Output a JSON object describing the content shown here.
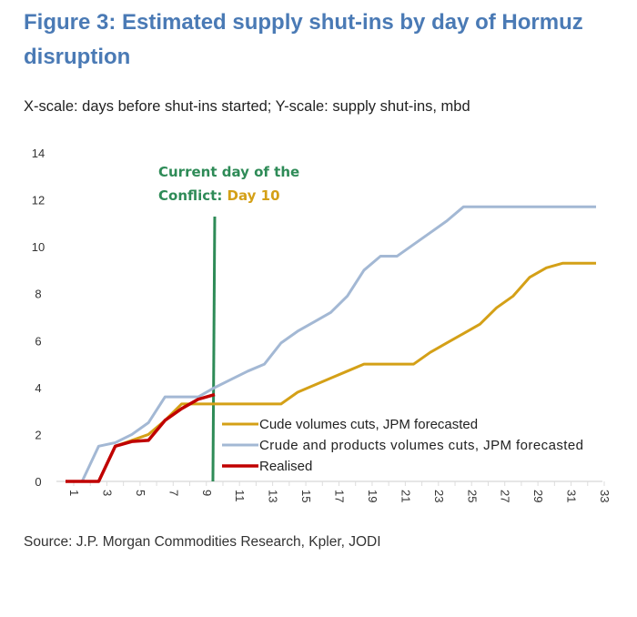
{
  "chart_data": {
    "type": "line",
    "title": "Figure 3: Estimated supply shut-ins by day of Hormuz disruption",
    "subtitle": "X-scale: days before shut-ins started; Y-scale: supply shut-ins, mbd",
    "source": "Source: J.P. Morgan Commodities Research, Kpler, JODI",
    "xlim": [
      1,
      33
    ],
    "ylim": [
      0,
      14
    ],
    "yticks": [
      0,
      2,
      4,
      6,
      8,
      10,
      12,
      14
    ],
    "xticks": [
      1,
      3,
      5,
      7,
      9,
      11,
      13,
      15,
      17,
      19,
      21,
      23,
      25,
      27,
      29,
      31,
      33
    ],
    "legend_placement": "bottom-center",
    "annotation": {
      "line1": "Current day of the",
      "line2a": "Conflict: ",
      "line2b": "Day 10",
      "x": 10,
      "color": "#2e8b57",
      "highlight": "#d4a017"
    },
    "series": [
      {
        "name": "Cude volumes cuts, JPM forecasted",
        "color": "#d4a017",
        "x": [
          1,
          2,
          3,
          4,
          5,
          6,
          7,
          8,
          9,
          10,
          11,
          12,
          13,
          14,
          15,
          16,
          17,
          18,
          19,
          20,
          21,
          22,
          23,
          24,
          25,
          26,
          27,
          28,
          29,
          30,
          31,
          32,
          33
        ],
        "values": [
          0,
          0,
          0,
          1.5,
          1.75,
          2.0,
          2.6,
          3.3,
          3.3,
          3.3,
          3.3,
          3.3,
          3.3,
          3.3,
          3.8,
          4.1,
          4.4,
          4.7,
          5.0,
          5.0,
          5.0,
          5.0,
          5.5,
          5.9,
          6.3,
          6.7,
          7.4,
          7.9,
          8.7,
          9.1,
          9.3,
          9.3,
          9.3
        ]
      },
      {
        "name": "Crude and products volumes cuts, JPM forecasted",
        "color": "#a3b8d4",
        "x": [
          1,
          2,
          3,
          4,
          5,
          6,
          7,
          8,
          9,
          10,
          11,
          12,
          13,
          14,
          15,
          16,
          17,
          18,
          19,
          20,
          21,
          22,
          23,
          24,
          25,
          26,
          27,
          28,
          29,
          30,
          31,
          32,
          33
        ],
        "values": [
          0,
          0,
          1.5,
          1.65,
          2.0,
          2.5,
          3.6,
          3.6,
          3.6,
          4.0,
          4.35,
          4.7,
          5.0,
          5.9,
          6.4,
          6.8,
          7.2,
          7.9,
          9.0,
          9.6,
          9.6,
          10.1,
          10.6,
          11.1,
          11.7,
          11.7,
          11.7,
          11.7,
          11.7,
          11.7,
          11.7,
          11.7,
          11.7
        ]
      },
      {
        "name": "Realised",
        "color": "#c00000",
        "x": [
          1,
          2,
          3,
          4,
          5,
          6,
          7,
          8,
          9,
          10
        ],
        "values": [
          0,
          0,
          0,
          1.5,
          1.7,
          1.75,
          2.6,
          3.1,
          3.5,
          3.7
        ]
      }
    ]
  }
}
